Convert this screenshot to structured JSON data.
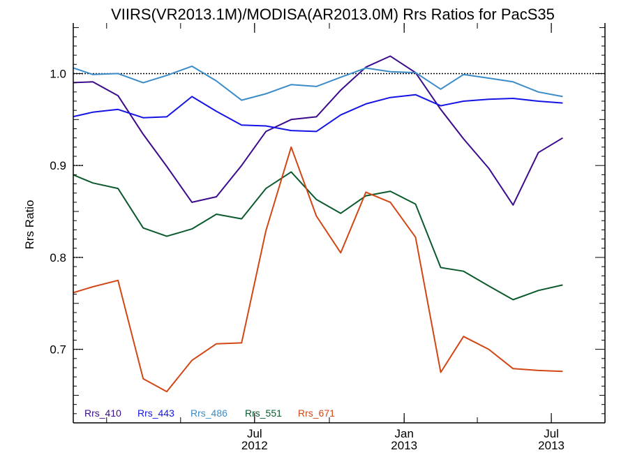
{
  "chart_data": {
    "type": "line",
    "title": "VIIRS(VR2013.1M)/MODISA(AR2013.0M)  Rrs Ratios for PacS35",
    "xlabel": "",
    "ylabel": "Rrs Ratio",
    "xlim": [
      "2011-11-21",
      "2013-09-05"
    ],
    "ylim": [
      0.62,
      1.055
    ],
    "yticks": [
      {
        "value": 0.7,
        "label": "0.7"
      },
      {
        "value": 0.8,
        "label": "0.8"
      },
      {
        "value": 0.9,
        "label": "0.9"
      },
      {
        "value": 1.0,
        "label": "1.0"
      }
    ],
    "xticks": [
      {
        "date": "2012-07-01",
        "label": "Jul",
        "label2": "2012"
      },
      {
        "date": "2013-01-01",
        "label": "Jan",
        "label2": "2013"
      },
      {
        "date": "2013-07-01",
        "label": "Jul",
        "label2": "2013"
      }
    ],
    "reference_line": 1.0,
    "x": [
      "2011-11-15",
      "2011-12-15",
      "2012-01-15",
      "2012-02-15",
      "2012-03-15",
      "2012-04-15",
      "2012-05-15",
      "2012-06-15",
      "2012-07-15",
      "2012-08-15",
      "2012-09-15",
      "2012-10-15",
      "2012-11-15",
      "2012-12-15",
      "2013-01-15",
      "2013-02-15",
      "2013-03-15",
      "2013-04-15",
      "2013-05-15",
      "2013-06-15",
      "2013-07-15",
      "2013-08-15",
      "2013-09-15"
    ],
    "legend_placement": "bottom-left",
    "series": [
      {
        "name": "Rrs_410",
        "color": "#3c0a8c",
        "values": [
          0.99,
          0.991,
          0.976,
          0.934,
          0.899,
          0.86,
          0.866,
          0.9,
          0.937,
          0.95,
          0.953,
          0.982,
          1.007,
          1.019,
          1.001,
          0.961,
          0.929,
          0.897,
          0.857,
          0.914,
          0.93,
          null,
          null
        ]
      },
      {
        "name": "Rrs_443",
        "color": "#1414e6",
        "values": [
          0.952,
          0.958,
          0.961,
          0.952,
          0.953,
          0.975,
          0.959,
          0.944,
          0.943,
          0.938,
          0.937,
          0.955,
          0.967,
          0.974,
          0.977,
          0.965,
          0.97,
          0.972,
          0.973,
          0.97,
          0.968,
          null,
          null
        ]
      },
      {
        "name": "Rrs_486",
        "color": "#3a8cc8",
        "values": [
          1.008,
          0.999,
          1.0,
          0.99,
          0.998,
          1.008,
          0.992,
          0.971,
          0.978,
          0.988,
          0.986,
          0.996,
          1.006,
          1.002,
          1.001,
          0.983,
          0.999,
          0.995,
          0.991,
          0.98,
          0.975,
          null,
          null
        ]
      },
      {
        "name": "Rrs_551",
        "color": "#0a5a2d",
        "values": [
          0.892,
          0.881,
          0.875,
          0.832,
          0.823,
          0.831,
          0.847,
          0.842,
          0.875,
          0.893,
          0.863,
          0.848,
          0.867,
          0.872,
          0.858,
          0.789,
          0.785,
          0.769,
          0.754,
          0.764,
          0.77,
          null,
          null
        ]
      },
      {
        "name": "Rrs_671",
        "color": "#d24614",
        "values": [
          0.76,
          0.768,
          0.775,
          0.668,
          0.654,
          0.688,
          0.706,
          0.707,
          0.829,
          0.92,
          0.845,
          0.805,
          0.871,
          0.86,
          0.822,
          0.675,
          0.714,
          0.7,
          0.679,
          0.677,
          0.676,
          null,
          null
        ]
      }
    ]
  }
}
